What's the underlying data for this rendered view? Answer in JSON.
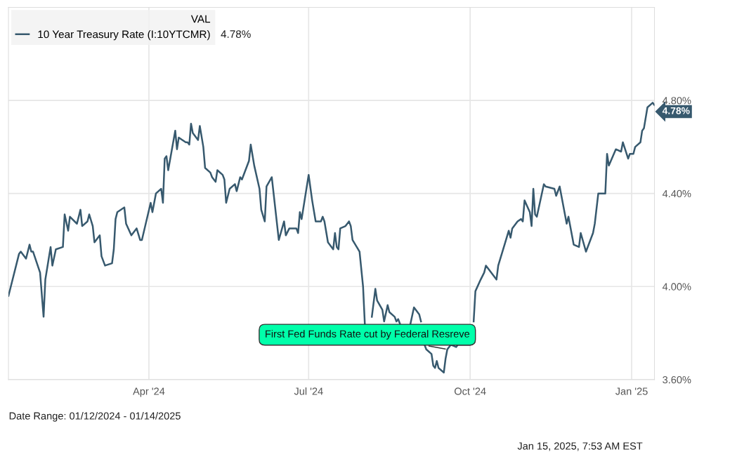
{
  "chart_data": {
    "type": "line",
    "x": [
      "2024-01-12",
      "2024-01-18",
      "2024-01-19",
      "2024-01-22",
      "2024-01-24",
      "2024-01-25",
      "2024-01-26",
      "2024-01-30",
      "2024-02-01",
      "2024-02-02",
      "2024-02-05",
      "2024-02-06",
      "2024-02-08",
      "2024-02-12",
      "2024-02-13",
      "2024-02-15",
      "2024-02-16",
      "2024-02-20",
      "2024-02-22",
      "2024-02-23",
      "2024-02-26",
      "2024-02-27",
      "2024-02-29",
      "2024-03-01",
      "2024-03-04",
      "2024-03-05",
      "2024-03-07",
      "2024-03-11",
      "2024-03-12",
      "2024-03-13",
      "2024-03-14",
      "2024-03-18",
      "2024-03-19",
      "2024-03-22",
      "2024-03-25",
      "2024-03-27",
      "2024-03-28",
      "2024-04-02",
      "2024-04-03",
      "2024-04-05",
      "2024-04-08",
      "2024-04-09",
      "2024-04-10",
      "2024-04-11",
      "2024-04-12",
      "2024-04-16",
      "2024-04-17",
      "2024-04-18",
      "2024-04-22",
      "2024-04-23",
      "2024-04-24",
      "2024-04-25",
      "2024-04-26",
      "2024-04-29",
      "2024-04-30",
      "2024-05-02",
      "2024-05-03",
      "2024-05-06",
      "2024-05-07",
      "2024-05-09",
      "2024-05-10",
      "2024-05-13",
      "2024-05-14",
      "2024-05-15",
      "2024-05-17",
      "2024-05-20",
      "2024-05-21",
      "2024-05-23",
      "2024-05-24",
      "2024-05-28",
      "2024-05-29",
      "2024-05-31",
      "2024-06-03",
      "2024-06-04",
      "2024-06-06",
      "2024-06-07",
      "2024-06-10",
      "2024-06-14",
      "2024-06-17",
      "2024-06-18",
      "2024-06-20",
      "2024-06-24",
      "2024-06-25",
      "2024-06-26",
      "2024-06-27",
      "2024-07-01",
      "2024-07-03",
      "2024-07-05",
      "2024-07-08",
      "2024-07-09",
      "2024-07-10",
      "2024-07-12",
      "2024-07-15",
      "2024-07-16",
      "2024-07-17",
      "2024-07-18",
      "2024-07-19",
      "2024-07-22",
      "2024-07-24",
      "2024-07-25",
      "2024-07-26",
      "2024-07-30",
      "2024-08-01",
      "2024-08-02",
      "2024-08-05",
      "2024-08-06",
      "2024-08-08",
      "2024-08-09",
      "2024-08-12",
      "2024-08-13",
      "2024-08-15",
      "2024-08-16",
      "2024-08-19",
      "2024-08-20",
      "2024-08-21",
      "2024-08-22",
      "2024-08-26",
      "2024-08-28",
      "2024-08-30",
      "2024-09-02",
      "2024-09-03",
      "2024-09-04",
      "2024-09-05",
      "2024-09-06",
      "2024-09-09",
      "2024-09-10",
      "2024-09-11",
      "2024-09-12",
      "2024-09-13",
      "2024-09-16",
      "2024-09-17",
      "2024-09-18",
      "2024-09-20",
      "2024-09-23",
      "2024-09-24",
      "2024-09-27",
      "2024-10-01",
      "2024-10-02",
      "2024-10-03",
      "2024-10-04",
      "2024-10-07",
      "2024-10-09",
      "2024-10-10",
      "2024-10-16",
      "2024-10-17",
      "2024-10-21",
      "2024-10-23",
      "2024-10-24",
      "2024-10-25",
      "2024-10-28",
      "2024-10-30",
      "2024-10-31",
      "2024-11-01",
      "2024-11-04",
      "2024-11-05",
      "2024-11-06",
      "2024-11-07",
      "2024-11-08",
      "2024-11-12",
      "2024-11-13",
      "2024-11-18",
      "2024-11-19",
      "2024-11-21",
      "2024-11-25",
      "2024-11-26",
      "2024-11-29",
      "2024-12-02",
      "2024-12-03",
      "2024-12-06",
      "2024-12-10",
      "2024-12-11",
      "2024-12-13",
      "2024-12-16",
      "2024-12-17",
      "2024-12-18",
      "2024-12-19",
      "2024-12-23",
      "2024-12-26",
      "2024-12-27",
      "2024-12-30",
      "2024-12-31",
      "2025-01-02",
      "2025-01-03",
      "2025-01-06",
      "2025-01-07",
      "2025-01-08",
      "2025-01-10",
      "2025-01-13",
      "2025-01-14"
    ],
    "series": [
      {
        "name": "10 Year Treasury Rate (I:10YTCMR)",
        "color": "#37596e",
        "values": [
          3.96,
          4.14,
          4.15,
          4.12,
          4.18,
          4.15,
          4.15,
          4.06,
          3.87,
          4.03,
          4.17,
          4.09,
          4.16,
          4.17,
          4.31,
          4.24,
          4.3,
          4.27,
          4.33,
          4.26,
          4.28,
          4.31,
          4.26,
          4.19,
          4.22,
          4.13,
          4.09,
          4.1,
          4.16,
          4.29,
          4.32,
          4.34,
          4.27,
          4.22,
          4.25,
          4.2,
          4.2,
          4.36,
          4.32,
          4.4,
          4.42,
          4.36,
          4.55,
          4.56,
          4.5,
          4.67,
          4.59,
          4.64,
          4.62,
          4.62,
          4.61,
          4.7,
          4.66,
          4.63,
          4.69,
          4.6,
          4.51,
          4.49,
          4.47,
          4.45,
          4.5,
          4.48,
          4.46,
          4.36,
          4.42,
          4.44,
          4.41,
          4.47,
          4.46,
          4.54,
          4.61,
          4.52,
          4.42,
          4.33,
          4.28,
          4.43,
          4.47,
          4.2,
          4.28,
          4.22,
          4.25,
          4.25,
          4.23,
          4.32,
          4.29,
          4.48,
          4.37,
          4.28,
          4.28,
          4.3,
          4.28,
          4.19,
          4.16,
          4.23,
          4.17,
          4.16,
          4.25,
          4.26,
          4.28,
          4.26,
          4.2,
          4.15,
          4.0,
          3.84,
          null,
          3.87,
          3.99,
          3.94,
          3.9,
          3.85,
          3.92,
          3.89,
          3.87,
          3.85,
          3.86,
          3.84,
          null,
          3.84,
          3.91,
          3.88,
          3.85,
          null,
          3.75,
          3.73,
          3.71,
          3.66,
          3.65,
          3.68,
          3.65,
          3.63,
          3.69,
          3.73,
          3.75,
          3.74,
          3.75,
          3.75,
          3.75,
          null,
          3.85,
          3.98,
          4.03,
          4.06,
          4.09,
          4.03,
          4.09,
          4.19,
          4.24,
          4.21,
          4.25,
          4.28,
          4.29,
          4.28,
          4.37,
          4.32,
          4.26,
          4.42,
          4.31,
          4.3,
          4.44,
          4.43,
          4.42,
          4.39,
          4.43,
          4.27,
          4.3,
          4.18,
          4.17,
          4.23,
          4.15,
          4.23,
          4.27,
          4.4,
          4.4,
          4.4,
          4.57,
          4.52,
          4.59,
          4.58,
          4.62,
          4.55,
          4.57,
          4.57,
          4.6,
          4.62,
          4.67,
          4.68,
          4.77,
          4.79,
          4.78
        ],
        "value_labels": [
          null,
          null,
          null,
          null,
          null,
          null,
          null,
          null,
          null,
          null,
          null,
          null,
          null,
          null,
          null,
          null,
          null,
          null,
          null,
          null,
          null,
          null,
          null,
          null,
          null,
          null,
          null,
          null,
          null,
          null,
          null,
          null,
          null,
          null,
          null,
          null,
          null,
          null,
          null,
          null,
          null,
          null,
          null,
          null,
          null,
          null,
          null,
          null,
          null,
          null,
          null,
          null,
          null,
          null,
          null,
          null,
          null,
          null,
          null,
          null,
          null,
          null,
          null,
          null,
          null,
          null,
          null,
          null,
          null,
          null,
          null,
          null,
          null,
          null,
          null,
          null,
          null,
          null,
          null,
          null,
          null,
          null,
          null,
          null,
          null,
          null,
          null,
          null,
          null,
          null,
          null,
          null,
          null,
          null,
          null,
          null,
          null,
          null,
          null,
          null,
          null,
          null,
          null,
          null,
          null,
          null,
          null,
          null,
          null,
          null,
          null,
          null,
          null,
          null,
          null,
          null,
          null,
          null,
          null,
          null,
          null,
          null,
          null,
          null,
          null,
          null,
          null,
          null,
          null,
          null,
          null,
          null,
          null,
          null,
          null,
          null,
          null,
          null,
          null,
          null,
          null,
          null,
          null,
          null,
          null,
          null,
          null,
          null,
          null,
          null,
          null,
          null,
          null,
          null,
          null,
          null,
          null,
          null,
          null,
          null,
          null,
          null,
          null,
          null,
          null,
          null,
          null,
          null,
          null,
          null,
          null,
          null,
          null,
          null,
          null,
          null,
          null,
          null,
          null,
          null,
          null,
          null,
          null,
          null,
          null,
          null,
          null,
          null,
          "4.78%"
        ]
      }
    ],
    "xlim": [
      "2024-01-12",
      "2025-01-14"
    ],
    "xticks": [
      {
        "value": "2024-04-01",
        "label": "Apr '24"
      },
      {
        "value": "2024-07-01",
        "label": "Jul '24"
      },
      {
        "value": "2024-10-01",
        "label": "Oct '24"
      },
      {
        "value": "2025-01-01",
        "label": "Jan '25"
      }
    ],
    "ylim": [
      3.6,
      5.2
    ],
    "yticks": [
      {
        "value": 3.6,
        "label": "3.60%"
      },
      {
        "value": 4.0,
        "label": "4.00%"
      },
      {
        "value": 4.4,
        "label": "4.40%"
      },
      {
        "value": 4.8,
        "label": "4.80%"
      }
    ],
    "grid": true,
    "legend": "top left",
    "legend_title": "VAL",
    "marker": "none",
    "line_style": "solid",
    "annotations": [
      "Date Range: 01/12/2024 - 01/14/2025",
      "Jan 15, 2025, 7:53 AM EST",
      "4.78%",
      {
        "text": "First Fed Funds Rate cut by Federal Resreve",
        "x": "2024-09-18",
        "y": 3.73
      }
    ]
  }
}
